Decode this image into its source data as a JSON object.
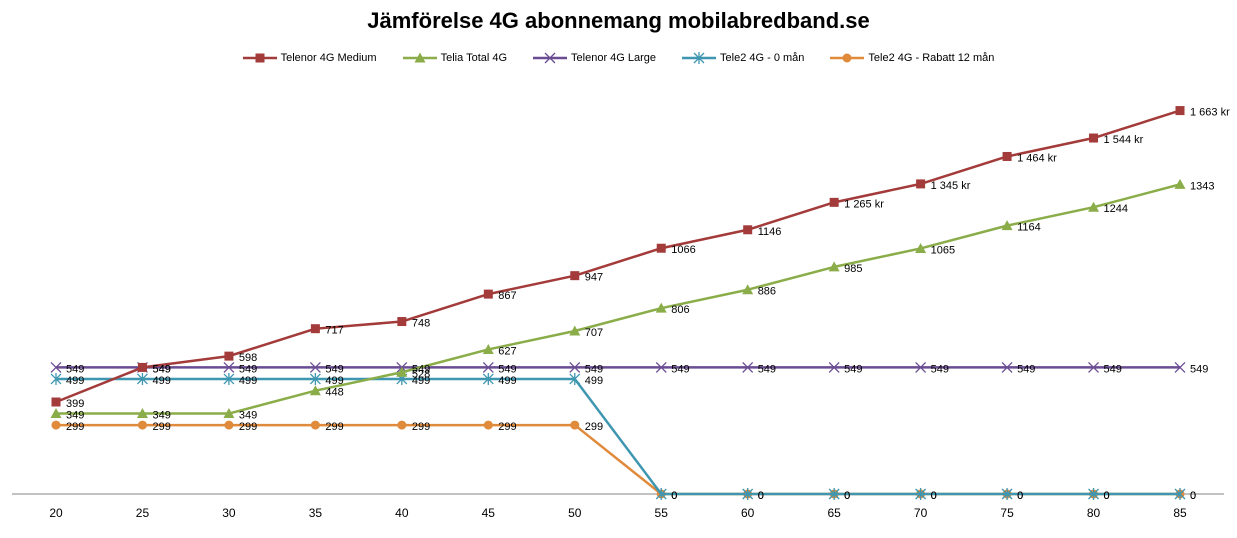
{
  "chart_data": {
    "type": "line",
    "title": "Jämförelse 4G abonnemang mobilabredband.se",
    "xlabel": "",
    "ylabel": "",
    "x": [
      20,
      25,
      30,
      35,
      40,
      45,
      50,
      55,
      60,
      65,
      70,
      75,
      80,
      85
    ],
    "ylim": [
      0,
      1800
    ],
    "grid": false,
    "legend_position": "top",
    "series": [
      {
        "name": "Telenor 4G Medium",
        "color": "#a33b3a",
        "marker": "square",
        "values": [
          399,
          549,
          598,
          717,
          748,
          867,
          947,
          1066,
          1146,
          1265,
          1345,
          1464,
          1544,
          1663
        ],
        "labels": [
          "399",
          "549",
          "598",
          "717",
          "748",
          "867",
          "947",
          "1066",
          "1146",
          "1 265 kr",
          "1 345 kr",
          "1 464 kr",
          "1 544 kr",
          "1 663 kr"
        ]
      },
      {
        "name": "Telia Total 4G",
        "color": "#8aad4a",
        "marker": "triangle",
        "values": [
          349,
          349,
          349,
          448,
          528,
          627,
          707,
          806,
          886,
          985,
          1065,
          1164,
          1244,
          1343
        ],
        "labels": [
          "349",
          "349",
          "349",
          "448",
          "528",
          "627",
          "707",
          "806",
          "886",
          "985",
          "1065",
          "1164",
          "1244",
          "1343"
        ]
      },
      {
        "name": "Telenor 4G Large",
        "color": "#6a4c93",
        "marker": "x",
        "values": [
          549,
          549,
          549,
          549,
          549,
          549,
          549,
          549,
          549,
          549,
          549,
          549,
          549,
          549
        ],
        "labels": [
          "549",
          "549",
          "549",
          "549",
          "549",
          "549",
          "549",
          "549",
          "549",
          "549",
          "549",
          "549",
          "549",
          "549"
        ]
      },
      {
        "name": "Tele2 4G - 0 mån",
        "color": "#3f96b0",
        "marker": "star",
        "values": [
          499,
          499,
          499,
          499,
          499,
          499,
          499,
          0,
          0,
          0,
          0,
          0,
          0,
          0
        ],
        "labels": [
          "499",
          "499",
          "499",
          "499",
          "499",
          "499",
          "499",
          "0",
          "0",
          "0",
          "0",
          "0",
          "0",
          "0"
        ]
      },
      {
        "name": "Tele2 4G - Rabatt 12 mån",
        "color": "#e08a3c",
        "marker": "circle",
        "values": [
          299,
          299,
          299,
          299,
          299,
          299,
          299,
          0,
          0,
          0,
          0,
          0,
          0,
          0
        ],
        "labels": [
          "299",
          "299",
          "299",
          "299",
          "299",
          "299",
          "299",
          "0",
          "0",
          "0",
          "0",
          "0",
          "0",
          "0"
        ]
      }
    ]
  }
}
